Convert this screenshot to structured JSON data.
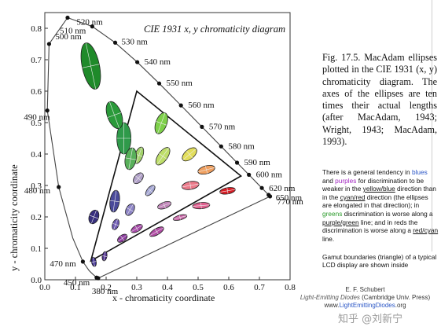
{
  "chart_data": {
    "type": "scatter",
    "title": "CIE 1931 x, y chromaticity diagram",
    "xlabel": "x - chromaticity coordinate",
    "ylabel": "y - chromaticity coordinate",
    "xlim": [
      0.0,
      0.8
    ],
    "ylim": [
      0.0,
      0.85
    ],
    "xticks": [
      "0.0",
      "0.1",
      "0.2",
      "0.3",
      "0.4",
      "0.5",
      "0.6",
      "0.7",
      "0.8"
    ],
    "yticks": [
      "0.0",
      "0.1",
      "0.2",
      "0.3",
      "0.4",
      "0.5",
      "0.6",
      "0.7",
      "0.8"
    ],
    "locus": [
      {
        "x": 0.1741,
        "y": 0.005,
        "label": "380 nm"
      },
      {
        "x": 0.1738,
        "y": 0.0049
      },
      {
        "x": 0.1733,
        "y": 0.0048
      },
      {
        "x": 0.1726,
        "y": 0.0048
      },
      {
        "x": 0.1714,
        "y": 0.0051
      },
      {
        "x": 0.1689,
        "y": 0.0069,
        "label": "450 nm"
      },
      {
        "x": 0.1644,
        "y": 0.0109
      },
      {
        "x": 0.1566,
        "y": 0.0177
      },
      {
        "x": 0.144,
        "y": 0.0297
      },
      {
        "x": 0.1241,
        "y": 0.0578,
        "label": "470 nm"
      },
      {
        "x": 0.0913,
        "y": 0.1327
      },
      {
        "x": 0.0454,
        "y": 0.295,
        "label": "480 nm"
      },
      {
        "x": 0.0082,
        "y": 0.5384,
        "label": "490 nm"
      },
      {
        "x": 0.0139,
        "y": 0.7502,
        "label": "500 nm"
      },
      {
        "x": 0.0743,
        "y": 0.8338,
        "label": "510 nm"
      },
      {
        "x": 0.1547,
        "y": 0.8059,
        "label": "520 nm"
      },
      {
        "x": 0.2296,
        "y": 0.7543,
        "label": "530 nm"
      },
      {
        "x": 0.3016,
        "y": 0.6923,
        "label": "540 nm"
      },
      {
        "x": 0.3731,
        "y": 0.6245,
        "label": "550 nm"
      },
      {
        "x": 0.4441,
        "y": 0.5547,
        "label": "560 nm"
      },
      {
        "x": 0.5125,
        "y": 0.4866,
        "label": "570 nm"
      },
      {
        "x": 0.5752,
        "y": 0.4242,
        "label": "580 nm"
      },
      {
        "x": 0.627,
        "y": 0.3725,
        "label": "590 nm"
      },
      {
        "x": 0.6658,
        "y": 0.334,
        "label": "600 nm"
      },
      {
        "x": 0.6915,
        "y": 0.3083
      },
      {
        "x": 0.7079,
        "y": 0.292,
        "label": "620 nm"
      },
      {
        "x": 0.719,
        "y": 0.2809
      },
      {
        "x": 0.726,
        "y": 0.274
      },
      {
        "x": 0.73,
        "y": 0.27,
        "label": "650 nm"
      },
      {
        "x": 0.7334,
        "y": 0.2666
      },
      {
        "x": 0.7347,
        "y": 0.2653,
        "label": "770 nm"
      }
    ],
    "gamut_triangle": [
      {
        "x": 0.64,
        "y": 0.33
      },
      {
        "x": 0.3,
        "y": 0.6
      },
      {
        "x": 0.15,
        "y": 0.06
      }
    ],
    "ellipses": [
      {
        "x": 0.16,
        "y": 0.057,
        "color": "#3b2c8c"
      },
      {
        "x": 0.15,
        "y": 0.68,
        "color": "#1f8a2a"
      },
      {
        "x": 0.38,
        "y": 0.498,
        "color": "#7ed04a"
      },
      {
        "x": 0.16,
        "y": 0.2,
        "color": "#38307e"
      },
      {
        "x": 0.228,
        "y": 0.25,
        "color": "#4a4a9a"
      },
      {
        "x": 0.258,
        "y": 0.45,
        "color": "#2f9a4a"
      },
      {
        "x": 0.305,
        "y": 0.323,
        "color": "#b0a0c8"
      },
      {
        "x": 0.385,
        "y": 0.393,
        "color": "#bede6a"
      },
      {
        "x": 0.472,
        "y": 0.399,
        "color": "#e2de5a"
      },
      {
        "x": 0.527,
        "y": 0.35,
        "color": "#f0a060"
      },
      {
        "x": 0.475,
        "y": 0.3,
        "color": "#ec7a8a"
      },
      {
        "x": 0.51,
        "y": 0.236,
        "color": "#e05f8f"
      },
      {
        "x": 0.596,
        "y": 0.283,
        "color": "#d81c24"
      },
      {
        "x": 0.344,
        "y": 0.284,
        "color": "#a4a6d4"
      },
      {
        "x": 0.39,
        "y": 0.237,
        "color": "#c084b8"
      },
      {
        "x": 0.441,
        "y": 0.198,
        "color": "#cc68aa"
      },
      {
        "x": 0.278,
        "y": 0.223,
        "color": "#8d84c6"
      },
      {
        "x": 0.3,
        "y": 0.163,
        "color": "#a64aa8"
      },
      {
        "x": 0.365,
        "y": 0.153,
        "color": "#b04ca4"
      },
      {
        "x": 0.307,
        "y": 0.396,
        "color": "#a2d26a"
      },
      {
        "x": 0.231,
        "y": 0.176,
        "color": "#6c58b0"
      },
      {
        "x": 0.253,
        "y": 0.132,
        "color": "#8a3a9c"
      },
      {
        "x": 0.227,
        "y": 0.524,
        "color": "#2a9a3a"
      },
      {
        "x": 0.28,
        "y": 0.385,
        "color": "#58b05a"
      },
      {
        "x": 0.195,
        "y": 0.075,
        "color": "#4b2b8c"
      }
    ]
  },
  "caption": "Fig. 17.5. MacAdam ellipses plotted in the CIE 1931 (x, y) chromaticity diagram. The axes of the ellipses are ten times their actual lengths (after MacAdam, 1943; Wright, 1943; MacAdam, 1993).",
  "note": {
    "p1": "There is a general tendency in",
    "blues": "blues",
    "and": "and",
    "purples": "purples",
    "p2": "for discrimination to be weaker in the",
    "yellow_blue": "yellow/blue",
    "p3": "direction than in the",
    "cyan_red": "cyan/red",
    "p4": "direction (the ellipses are elongated in that direction); in",
    "greens": "greens",
    "p5": "discrimination is worse along a",
    "purple_green": "purple/green",
    "p6": "line; and in reds the discrimination is worse along a",
    "red_cyan": "red/cyan",
    "p7": "line."
  },
  "gamut_note": "Gamut boundaries (triangle) of a typical LCD display are shown inside",
  "credit": {
    "author": "E. F. Schubert",
    "book": "Light-Emitting Diodes",
    "publisher": "(Cambridge Univ. Press)",
    "url_prefix": "www.",
    "url_main": "LightEmittingDiodes",
    "url_suffix": ".org"
  },
  "watermark": "知乎 @刘新宁"
}
